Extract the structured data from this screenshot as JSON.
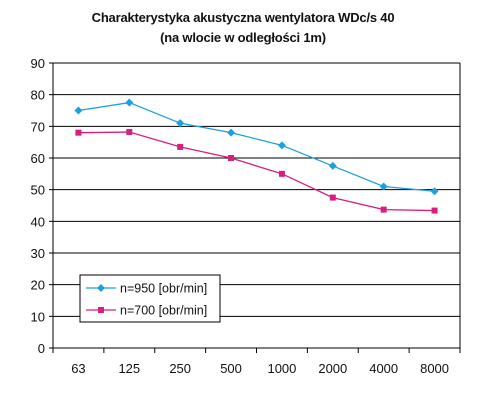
{
  "chart_data": {
    "type": "line",
    "title": "Charakterystyka akustyczna wentylatora WDc/s 40",
    "subtitle": "(na wlocie w odległości 1m)",
    "categories": [
      "63",
      "125",
      "250",
      "500",
      "1000",
      "2000",
      "4000",
      "8000"
    ],
    "series": [
      {
        "name": "n=950 [obr/min]",
        "color": "#1ea0dc",
        "marker": "diamond",
        "values": [
          75,
          77.5,
          71,
          68,
          64,
          57.5,
          51,
          49.5
        ]
      },
      {
        "name": "n=700 [obr/min]",
        "color": "#d61f7f",
        "marker": "square",
        "values": [
          68,
          68.2,
          63.5,
          60,
          55,
          47.5,
          43.7,
          43.4
        ]
      }
    ],
    "ylim": [
      0,
      90
    ],
    "yticks": [
      0,
      10,
      20,
      30,
      40,
      50,
      60,
      70,
      80,
      90
    ],
    "grid": "horizontal",
    "legend_position": "bottom-left"
  }
}
